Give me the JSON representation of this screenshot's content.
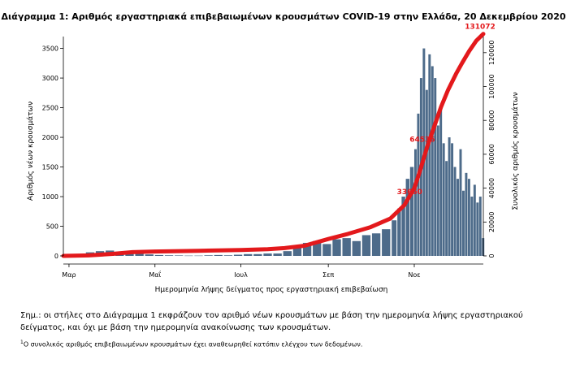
{
  "title": "Διάγραμμα 1: Αριθμός εργαστηριακά επιβεβαιωμένων κρουσμάτων COVID-19 στην Ελλάδα, 20 Δεκεμβρίου 2020",
  "chart_data": {
    "type": "bar",
    "title": "Διάγραμμα 1: Αριθμός εργαστηριακά επιβεβαιωμένων κρουσμάτων COVID-19 στην Ελλάδα, 20 Δεκεμβρίου 2020",
    "xlabel": "Ημερομηνία λήψης δείγματος προς εργαστηριακή επιβεβαίωση",
    "ylabel": "Αριθμός νέων κρουσμάτων",
    "y2label": "Συνολικός αριθμός κρουσμάτων",
    "ylim": [
      0,
      3700
    ],
    "y2lim": [
      0,
      129500
    ],
    "yticks": [
      "0",
      "500",
      "1000",
      "1500",
      "2000",
      "2500",
      "3000",
      "3500"
    ],
    "y2ticks": [
      "0",
      "20000",
      "40000",
      "60000",
      "80000",
      "100000",
      "120000"
    ],
    "x_ticks": [
      "Μαρ",
      "Μαΐ",
      "Ιουλ",
      "Σεπ",
      "Νοε"
    ],
    "x_tick_dates": [
      "2020-03-01",
      "2020-05-01",
      "2020-07-01",
      "2020-09-01",
      "2020-11-01"
    ],
    "x_range": [
      "2020-02-26",
      "2020-12-20"
    ],
    "series": [
      {
        "name": "",
        "type": "bar",
        "color": "#4d6b8a",
        "x": [
          "2020-02-26",
          "2020-03-06",
          "2020-03-13",
          "2020-03-20",
          "2020-03-27",
          "2020-04-03",
          "2020-04-10",
          "2020-04-17",
          "2020-04-24",
          "2020-05-01",
          "2020-05-08",
          "2020-05-15",
          "2020-05-22",
          "2020-05-29",
          "2020-06-05",
          "2020-06-12",
          "2020-06-19",
          "2020-06-26",
          "2020-07-03",
          "2020-07-10",
          "2020-07-17",
          "2020-07-24",
          "2020-07-31",
          "2020-08-07",
          "2020-08-14",
          "2020-08-21",
          "2020-08-28",
          "2020-09-04",
          "2020-09-11",
          "2020-09-18",
          "2020-09-25",
          "2020-10-02",
          "2020-10-09",
          "2020-10-16",
          "2020-10-20",
          "2020-10-23",
          "2020-10-26",
          "2020-10-29",
          "2020-11-01",
          "2020-11-03",
          "2020-11-05",
          "2020-11-07",
          "2020-11-09",
          "2020-11-11",
          "2020-11-13",
          "2020-11-15",
          "2020-11-17",
          "2020-11-19",
          "2020-11-21",
          "2020-11-23",
          "2020-11-25",
          "2020-11-27",
          "2020-11-29",
          "2020-12-01",
          "2020-12-03",
          "2020-12-05",
          "2020-12-07",
          "2020-12-09",
          "2020-12-11",
          "2020-12-13",
          "2020-12-15",
          "2020-12-17",
          "2020-12-19"
        ],
        "values": [
          2,
          15,
          60,
          80,
          90,
          70,
          60,
          40,
          25,
          15,
          10,
          8,
          5,
          5,
          10,
          15,
          10,
          20,
          30,
          30,
          40,
          40,
          80,
          150,
          220,
          250,
          200,
          280,
          300,
          250,
          350,
          380,
          450,
          600,
          800,
          1000,
          1300,
          1500,
          1800,
          2400,
          3000,
          3500,
          2800,
          3400,
          3200,
          3000,
          2200,
          2500,
          1900,
          1600,
          2000,
          1900,
          1500,
          1300,
          1800,
          1100,
          1400,
          1300,
          1000,
          1200,
          900,
          1000,
          300
        ]
      },
      {
        "name": "",
        "type": "line",
        "axis": "right",
        "color": "#e3191c",
        "x": [
          "2020-02-26",
          "2020-03-15",
          "2020-04-01",
          "2020-04-15",
          "2020-05-01",
          "2020-06-01",
          "2020-07-01",
          "2020-07-20",
          "2020-08-01",
          "2020-08-15",
          "2020-09-01",
          "2020-09-15",
          "2020-10-01",
          "2020-10-15",
          "2020-10-25",
          "2020-11-01",
          "2020-11-05",
          "2020-11-10",
          "2020-11-15",
          "2020-11-20",
          "2020-11-25",
          "2020-12-01",
          "2020-12-05",
          "2020-12-10",
          "2020-12-15",
          "2020-12-20"
        ],
        "values": [
          0,
          300,
          1200,
          2200,
          2600,
          3000,
          3500,
          4000,
          4600,
          6000,
          10000,
          13000,
          17000,
          22000,
          30000,
          40000,
          50000,
          64000,
          76000,
          88000,
          98000,
          108000,
          114000,
          121000,
          127000,
          131072
        ]
      }
    ],
    "annotations": [
      {
        "text": "131072",
        "x": "2020-12-20",
        "y": 131072,
        "axis": "right"
      },
      {
        "text": "64536",
        "x": "2020-11-09",
        "y": 64536,
        "axis": "right"
      },
      {
        "text": "33660",
        "x": "2020-10-31",
        "y": 33660,
        "axis": "right"
      }
    ]
  },
  "notes": {
    "note1": "Σημ.: οι στήλες στο Διάγραμμα 1 εκφράζουν τον αριθμό νέων κρουσμάτων με βάση την ημερομηνία λήψης εργαστηριακού δείγματος, και όχι με βάση την ημερομηνία ανακοίνωσης των κρουσμάτων.",
    "note2_mark": "1",
    "note2": "Ο συνολικός αριθμός επιβεβαιωμένων κρουσμάτων έχει αναθεωρηθεί κατόπιν ελέγχου των δεδομένων."
  }
}
